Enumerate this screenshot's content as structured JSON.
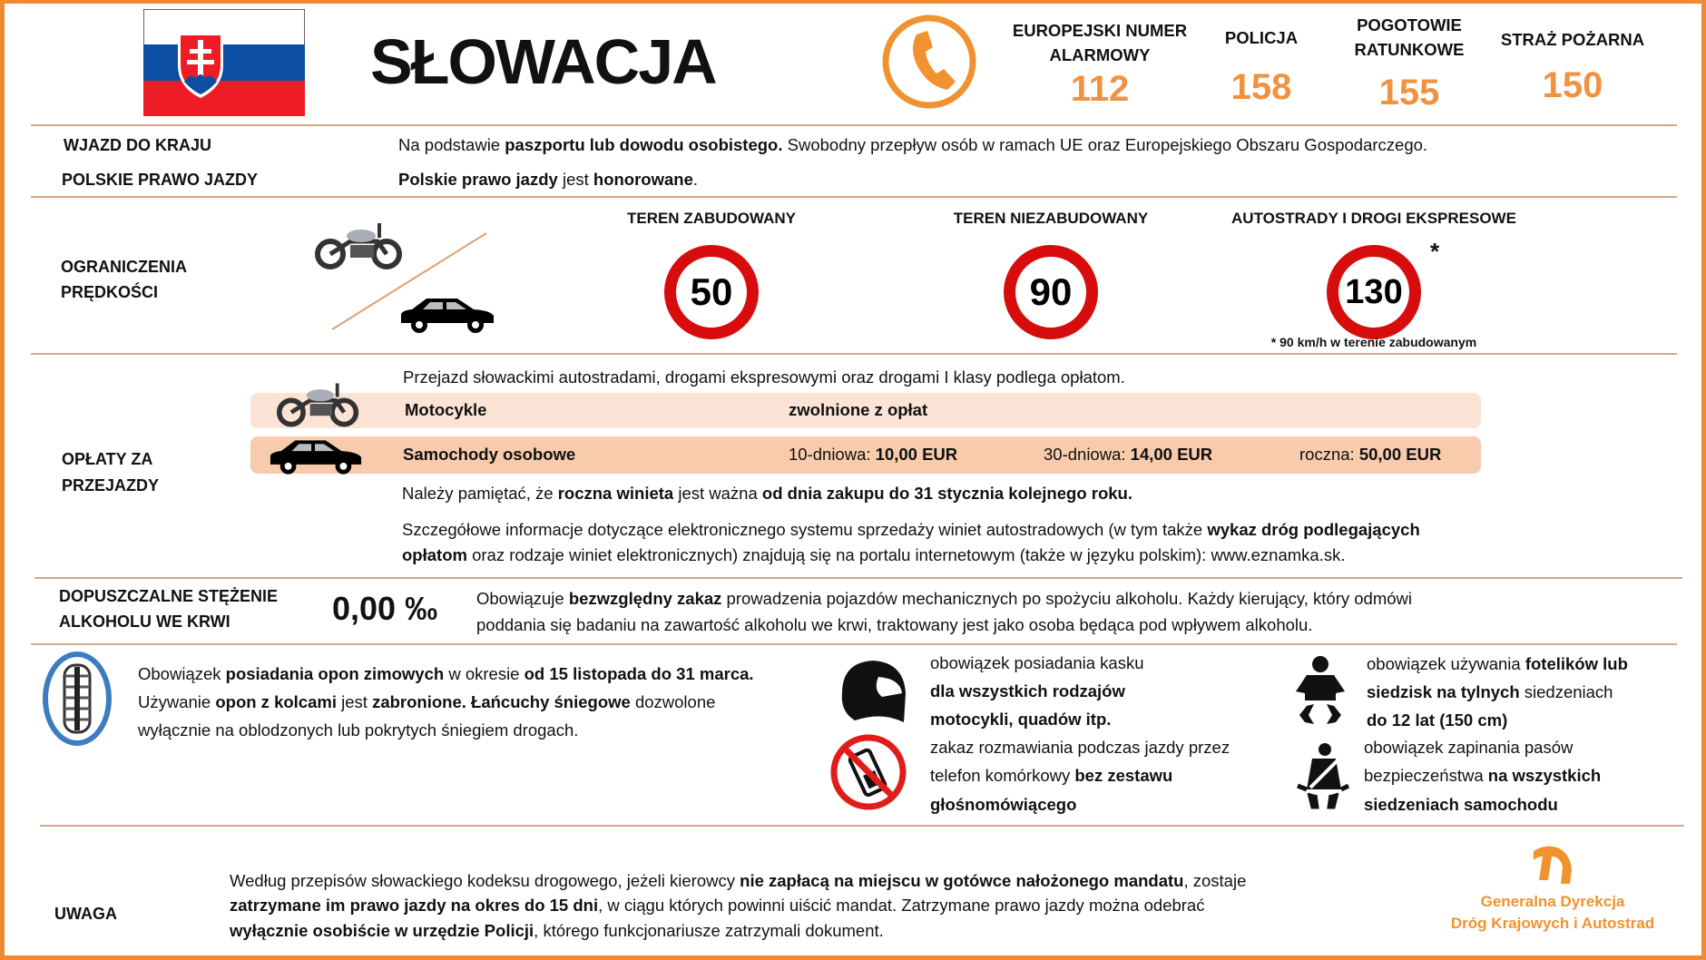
{
  "header": {
    "title": "SŁOWACJA",
    "flag_colors": [
      "#ffffff",
      "#0b4ea2",
      "#ee1c25"
    ],
    "emergency": [
      {
        "label_lines": [
          "EUROPEJSKI NUMER",
          "ALARMOWY"
        ],
        "number": "112"
      },
      {
        "label_lines": [
          "POLICJA"
        ],
        "number": "158"
      },
      {
        "label_lines": [
          "POGOTOWIE",
          "RATUNKOWE"
        ],
        "number": "155"
      },
      {
        "label_lines": [
          "STRAŻ POŻARNA"
        ],
        "number": "150"
      }
    ],
    "accent": "#f08a30"
  },
  "entry": {
    "label": "WJAZD DO KRAJU",
    "text": [
      {
        "t": "Na podstawie "
      },
      {
        "t": "paszportu lub dowodu osobistego.",
        "b": true
      },
      {
        "t": " Swobodny przepływ  osób w ramach UE oraz  Europejskiego Obszaru Gospodarczego."
      }
    ]
  },
  "license": {
    "label": "POLSKIE PRAWO JAZDY",
    "text": [
      {
        "t": "Polskie prawo jazdy",
        "b": true
      },
      {
        "t": " jest "
      },
      {
        "t": "honorowane",
        "b": true
      },
      {
        "t": "."
      }
    ]
  },
  "speed": {
    "label_lines": [
      "OGRANICZENIA",
      "PRĘDKOŚCI"
    ],
    "zones": [
      {
        "label": "TEREN ZABUDOWANY",
        "limit": "50"
      },
      {
        "label": "TEREN NIEZABUDOWANY",
        "limit": "90"
      },
      {
        "label": "AUTOSTRADY I DROGI EKSPRESOWE",
        "limit": "130",
        "mark": "*"
      }
    ],
    "footnote": "* 90 km/h w terenie  zabudowanym"
  },
  "tolls": {
    "label_lines": [
      "OPŁATY ZA",
      "PRZEJAZDY"
    ],
    "intro": "Przejazd słowackimi autostradami, drogami ekspresowymi oraz drogami I klasy podlega opłatom.",
    "moto": {
      "label": "Motocykle",
      "value": "zwolnione z opłat",
      "band_color": "#fbe4d5"
    },
    "car": {
      "label": "Samochody osobowe",
      "band_color": "#f8cbad",
      "prices": [
        {
          "k": "10-dniowa: ",
          "v": "10,00 EUR"
        },
        {
          "k": "30-dniowa: ",
          "v": "14,00 EUR"
        },
        {
          "k": "roczna: ",
          "v": "50,00 EUR"
        }
      ]
    },
    "note": [
      {
        "t": "Należy pamiętać, że "
      },
      {
        "t": "roczna winieta",
        "b": true
      },
      {
        "t": " jest ważna "
      },
      {
        "t": "od dnia zakupu do 31 stycznia kolejnego roku.",
        "b": true
      }
    ],
    "details": [
      [
        {
          "t": "Szczegółowe informacje dotyczące elektronicznego systemu sprzedaży winiet autostradowych (w tym także "
        },
        {
          "t": "wykaz dróg podlegających",
          "b": true
        }
      ],
      [
        {
          "t": "opłatom",
          "b": true
        },
        {
          "t": " oraz rodzaje  winiet elektronicznych) znajdują się na portalu internetowym  (także w języku polskim): www.eznamka.sk."
        }
      ]
    ]
  },
  "alcohol": {
    "label_lines": [
      "DOPUSZCZALNE STĘŻENIE",
      "ALKOHOLU WE KRWI"
    ],
    "value": "0,00 ‰",
    "text": [
      [
        {
          "t": "Obowiązuje "
        },
        {
          "t": "bezwzględny zakaz",
          "b": true
        },
        {
          "t": " prowadzenia pojazdów mechanicznych po spożyciu alkoholu.  Każdy kierujący, który odmówi"
        }
      ],
      [
        {
          "t": "poddania się badaniu na zawartość alkoholu  we krwi, traktowany jest jako osoba będąca pod wpływem  alkoholu."
        }
      ]
    ]
  },
  "rules": {
    "tyres": [
      [
        {
          "t": "Obowiązek "
        },
        {
          "t": "posiadania opon zimowych",
          "b": true
        },
        {
          "t": " w okresie "
        },
        {
          "t": "od 15 listopada do 31 marca.",
          "b": true
        }
      ],
      [
        {
          "t": "Używanie "
        },
        {
          "t": "opon z kolcami",
          "b": true
        },
        {
          "t": " jest "
        },
        {
          "t": "zabronione. Łańcuchy śniegowe",
          "b": true
        },
        {
          "t": " dozwolone"
        }
      ],
      [
        {
          "t": "wyłącznie na oblodzonych   lub pokrytych  śniegiem drogach."
        }
      ]
    ],
    "helmet": [
      [
        {
          "t": "obowiązek  posiadania kasku"
        }
      ],
      [
        {
          "t": "dla wszystkich rodzajów",
          "b": true
        }
      ],
      [
        {
          "t": "motocykli, quadów itp.",
          "b": true
        }
      ]
    ],
    "phone": [
      [
        {
          "t": "zakaz rozmawiania  podczas jazdy przez"
        }
      ],
      [
        {
          "t": "telefon komórkowy  "
        },
        {
          "t": "bez zestawu",
          "b": true
        }
      ],
      [
        {
          "t": "głośnomówiącego",
          "b": true
        }
      ]
    ],
    "child": [
      [
        {
          "t": "obowiązek  używania "
        },
        {
          "t": "fotelików lub",
          "b": true
        }
      ],
      [
        {
          "t": "siedzisk na tylnych",
          "b": true
        },
        {
          "t": " siedzeniach"
        }
      ],
      [
        {
          "t": "do 12 lat (150 cm)",
          "b": true
        }
      ]
    ],
    "belt": [
      [
        {
          "t": "obowiązek  zapinania pasów"
        }
      ],
      [
        {
          "t": "bezpieczeństwa "
        },
        {
          "t": "na wszystkich",
          "b": true
        }
      ],
      [
        {
          "t": "siedzeniach samochodu",
          "b": true
        }
      ]
    ]
  },
  "warning": {
    "label": "UWAGA",
    "text": [
      [
        {
          "t": "Według przepisów słowackiego kodeksu drogowego,  jeżeli kierowcy "
        },
        {
          "t": "nie zapłacą na miejscu w gotówce nałożonego mandatu",
          "b": true
        },
        {
          "t": ", zostaje"
        }
      ],
      [
        {
          "t": "zatrzymane im prawo jazdy na okres do 15 dni",
          "b": true
        },
        {
          "t": ", w ciągu których  powinni  uiścić mandat. Zatrzymane  prawo  jazdy można  odebrać"
        }
      ],
      [
        {
          "t": "wyłącznie osobiście w urzędzie Policji",
          "b": true
        },
        {
          "t": ", którego funkcjonariusze zatrzymali dokument."
        }
      ]
    ]
  },
  "logo": {
    "lines": [
      "Generalna Dyrekcja",
      "Dróg Krajowych i Autostrad"
    ]
  }
}
